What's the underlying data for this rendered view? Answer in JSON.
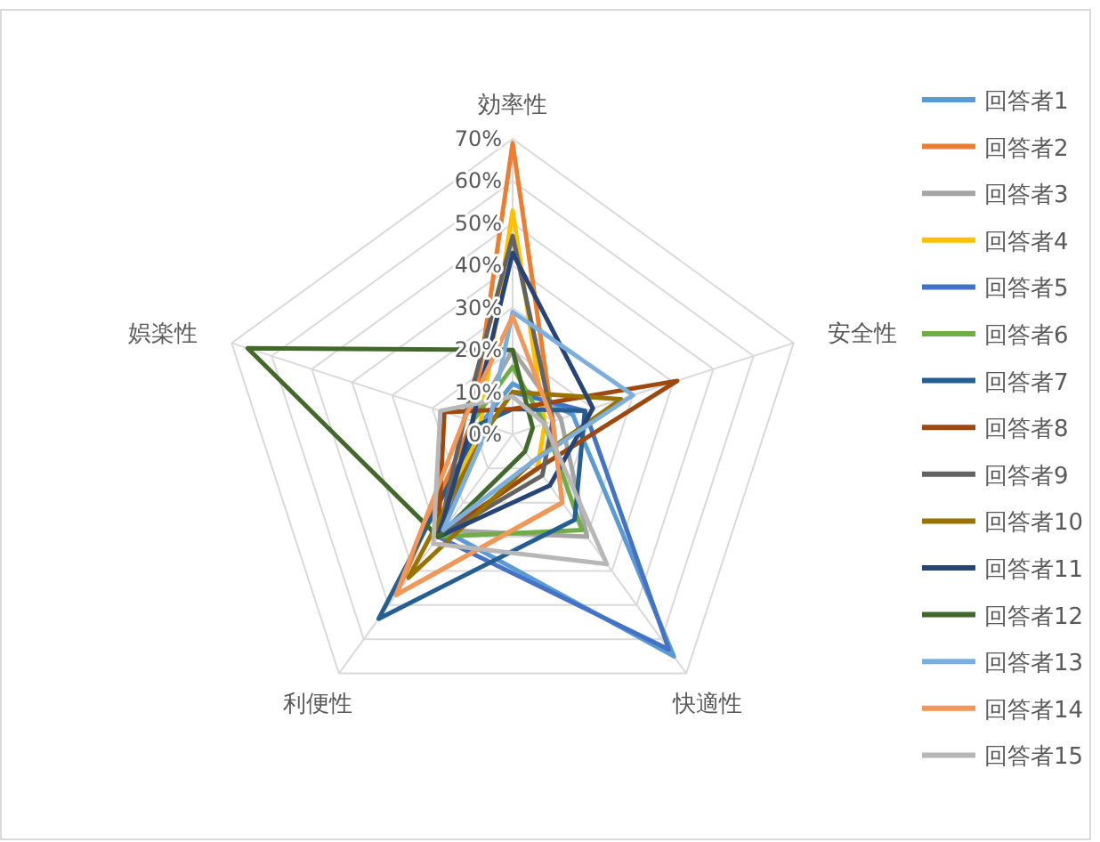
{
  "chart_data": {
    "type": "radar",
    "categories": [
      "効率性",
      "安全性",
      "快適性",
      "利便性",
      "娯楽性"
    ],
    "ylim": [
      0,
      70
    ],
    "yticks": [
      {
        "value": 0,
        "label": "0%"
      },
      {
        "value": 10,
        "label": "10%"
      },
      {
        "value": 20,
        "label": "20%"
      },
      {
        "value": 30,
        "label": "30%"
      },
      {
        "value": 40,
        "label": "40%"
      },
      {
        "value": 50,
        "label": "50%"
      },
      {
        "value": 60,
        "label": "60%"
      },
      {
        "value": 70,
        "label": "70%"
      }
    ],
    "grid": true,
    "legend": "right",
    "marker": "none",
    "series": [
      {
        "name": "回答者1",
        "color": "#5b9bd5",
        "values": [
          12,
          15,
          65,
          28,
          8
        ]
      },
      {
        "name": "回答者2",
        "color": "#ed7d31",
        "values": [
          69,
          10,
          20,
          47,
          10
        ]
      },
      {
        "name": "回答者3",
        "color": "#a5a5a5",
        "values": [
          20,
          12,
          30,
          28,
          10
        ]
      },
      {
        "name": "回答者4",
        "color": "#ffc000",
        "values": [
          53,
          8,
          10,
          30,
          8
        ]
      },
      {
        "name": "回答者5",
        "color": "#4472c4",
        "values": [
          10,
          18,
          63,
          30,
          6
        ]
      },
      {
        "name": "回答者6",
        "color": "#70ad47",
        "values": [
          16,
          8,
          28,
          30,
          10
        ]
      },
      {
        "name": "回答者7",
        "color": "#255e91",
        "values": [
          6,
          18,
          25,
          54,
          8
        ]
      },
      {
        "name": "回答者8",
        "color": "#9e480e",
        "values": [
          6,
          41,
          10,
          30,
          17
        ]
      },
      {
        "name": "回答者9",
        "color": "#636363",
        "values": [
          47,
          10,
          12,
          30,
          12
        ]
      },
      {
        "name": "回答者10",
        "color": "#997300",
        "values": [
          10,
          27,
          8,
          42,
          6
        ]
      },
      {
        "name": "回答者11",
        "color": "#264478",
        "values": [
          43,
          20,
          15,
          30,
          10
        ]
      },
      {
        "name": "回答者12",
        "color": "#43682b",
        "values": [
          20,
          5,
          5,
          30,
          66
        ]
      },
      {
        "name": "回答者13",
        "color": "#7cafdd",
        "values": [
          29,
          30,
          8,
          28,
          6
        ]
      },
      {
        "name": "回答者14",
        "color": "#f1975a",
        "values": [
          28,
          10,
          20,
          47,
          12
        ]
      },
      {
        "name": "回答者15",
        "color": "#b7b7b7",
        "values": [
          9,
          8,
          38,
          32,
          18
        ]
      }
    ]
  }
}
